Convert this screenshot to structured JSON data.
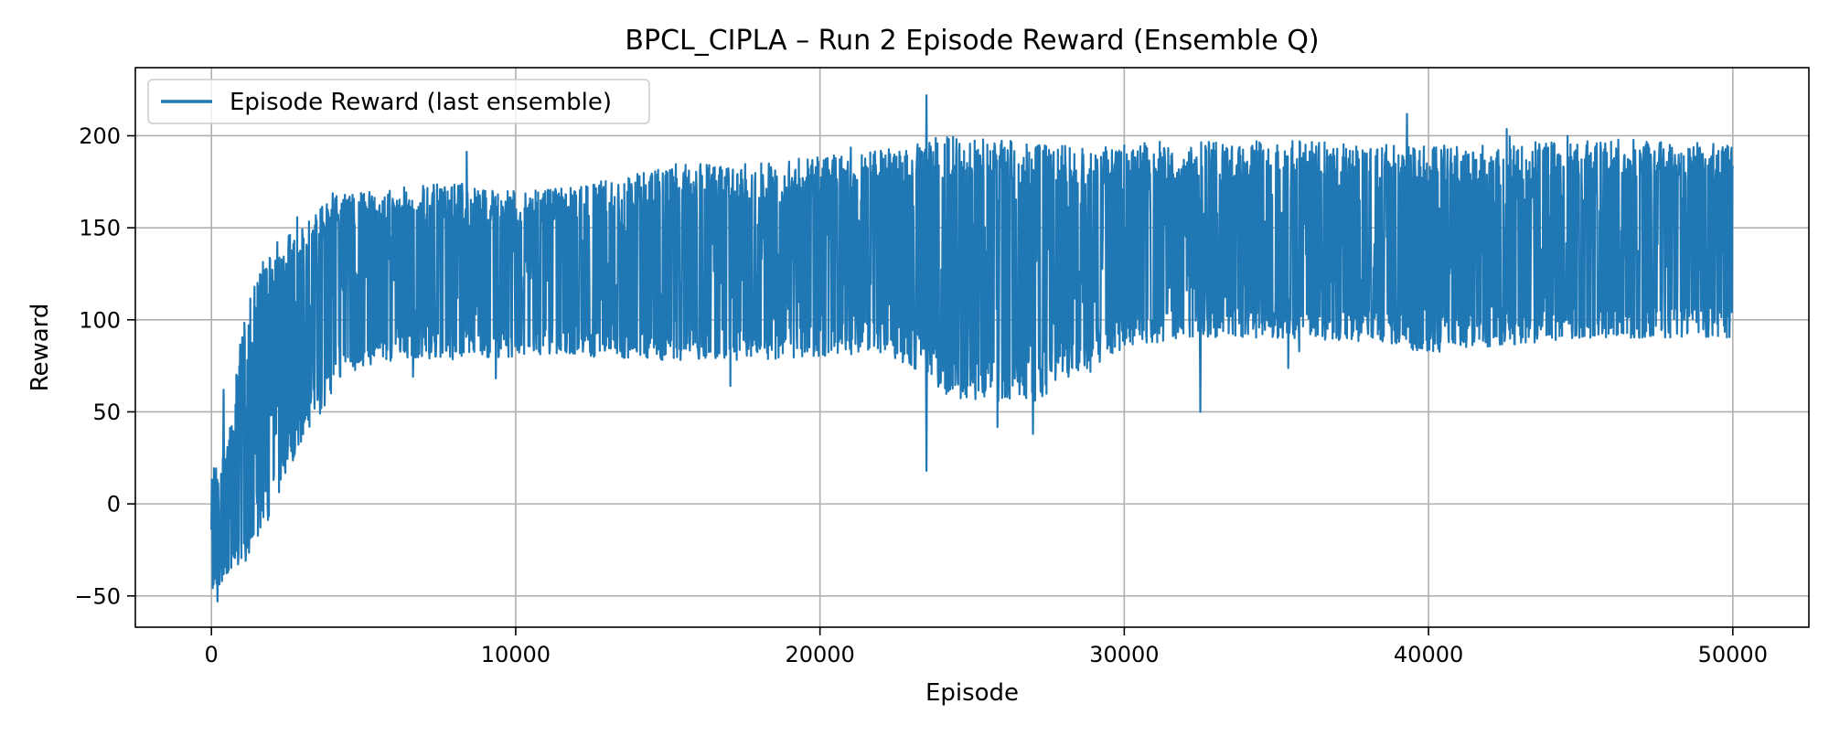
{
  "chart_data": {
    "type": "line",
    "title": "BPCL_CIPLA – Run 2 Episode Reward (Ensemble Q)",
    "xlabel": "Episode",
    "ylabel": "Reward",
    "xlim": [
      -2500,
      52500
    ],
    "ylim": [
      -67,
      237
    ],
    "x_ticks": [
      0,
      10000,
      20000,
      30000,
      40000,
      50000
    ],
    "x_tick_labels": [
      "0",
      "10000",
      "20000",
      "30000",
      "40000",
      "50000"
    ],
    "y_ticks": [
      -50,
      0,
      50,
      100,
      150,
      200
    ],
    "y_tick_labels": [
      "−50",
      "0",
      "50",
      "100",
      "150",
      "200"
    ],
    "grid": true,
    "legend_position": "top-left",
    "series": [
      {
        "name": "Episode Reward (last ensemble)",
        "color": "#1f77b4",
        "x_range": [
          0,
          50000
        ],
        "envelope": {
          "episode": [
            0,
            200,
            500,
            1000,
            1500,
            2000,
            2500,
            3000,
            3500,
            4000,
            4500,
            5000,
            6000,
            8000,
            10000,
            12000,
            15000,
            18000,
            20000,
            22000,
            23000,
            24000,
            25000,
            26000,
            27000,
            28000,
            30000,
            32000,
            35000,
            38000,
            40000,
            42000,
            45000,
            48000,
            50000
          ],
          "upper": [
            22,
            20,
            30,
            95,
            125,
            140,
            150,
            160,
            165,
            170,
            168,
            170,
            172,
            175,
            170,
            172,
            185,
            185,
            190,
            192,
            195,
            200,
            200,
            198,
            195,
            195,
            195,
            198,
            198,
            195,
            195,
            195,
            198,
            198,
            195
          ],
          "lower": [
            -50,
            -45,
            -40,
            -35,
            -20,
            -5,
            15,
            35,
            45,
            60,
            70,
            75,
            78,
            78,
            80,
            80,
            78,
            78,
            80,
            82,
            75,
            60,
            55,
            55,
            55,
            65,
            85,
            90,
            90,
            88,
            82,
            85,
            90,
            90,
            90
          ],
          "center": [
            -20,
            -15,
            -10,
            10,
            35,
            60,
            80,
            95,
            105,
            110,
            112,
            115,
            117,
            118,
            120,
            122,
            125,
            128,
            130,
            132,
            133,
            130,
            128,
            128,
            128,
            132,
            135,
            137,
            138,
            138,
            138,
            138,
            140,
            140,
            140
          ]
        },
        "notable_points": [
          {
            "x": 23500,
            "y": 222
          },
          {
            "x": 23500,
            "y": 18
          },
          {
            "x": 27000,
            "y": 38
          },
          {
            "x": 32500,
            "y": 50
          },
          {
            "x": 200,
            "y": -53
          },
          {
            "x": 400,
            "y": 62
          }
        ]
      }
    ]
  }
}
